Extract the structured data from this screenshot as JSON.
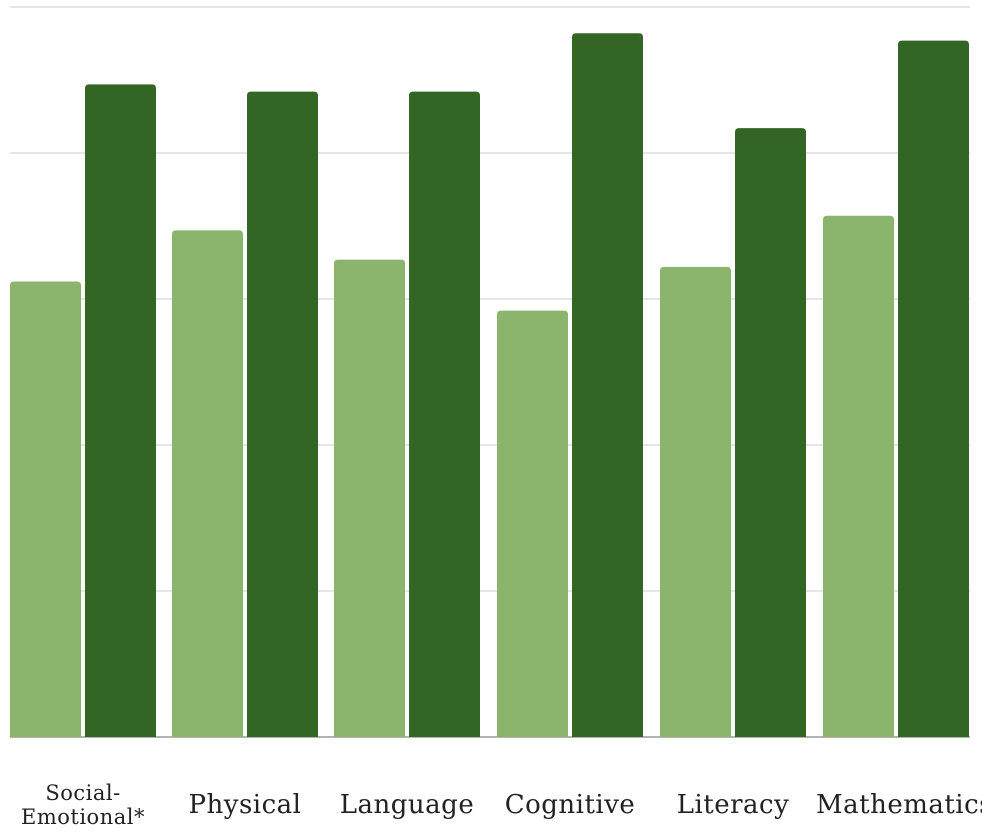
{
  "chart_data": {
    "type": "bar",
    "categories": [
      "Social-\nEmotional*",
      "Physical",
      "Language",
      "Cognitive",
      "Literacy",
      "Mathematics"
    ],
    "series": [
      {
        "values": [
          3.12,
          3.47,
          3.27,
          2.92,
          3.22,
          3.57
        ]
      },
      {
        "values": [
          4.47,
          4.42,
          4.42,
          4.82,
          4.17,
          4.77
        ]
      }
    ],
    "ylim": [
      0,
      5
    ],
    "grid": true,
    "legend": "none",
    "colors": {
      "series_light": "#8bb46d",
      "series_dark": "#336624",
      "grid": "#cccccc",
      "axis": "#999999"
    }
  }
}
